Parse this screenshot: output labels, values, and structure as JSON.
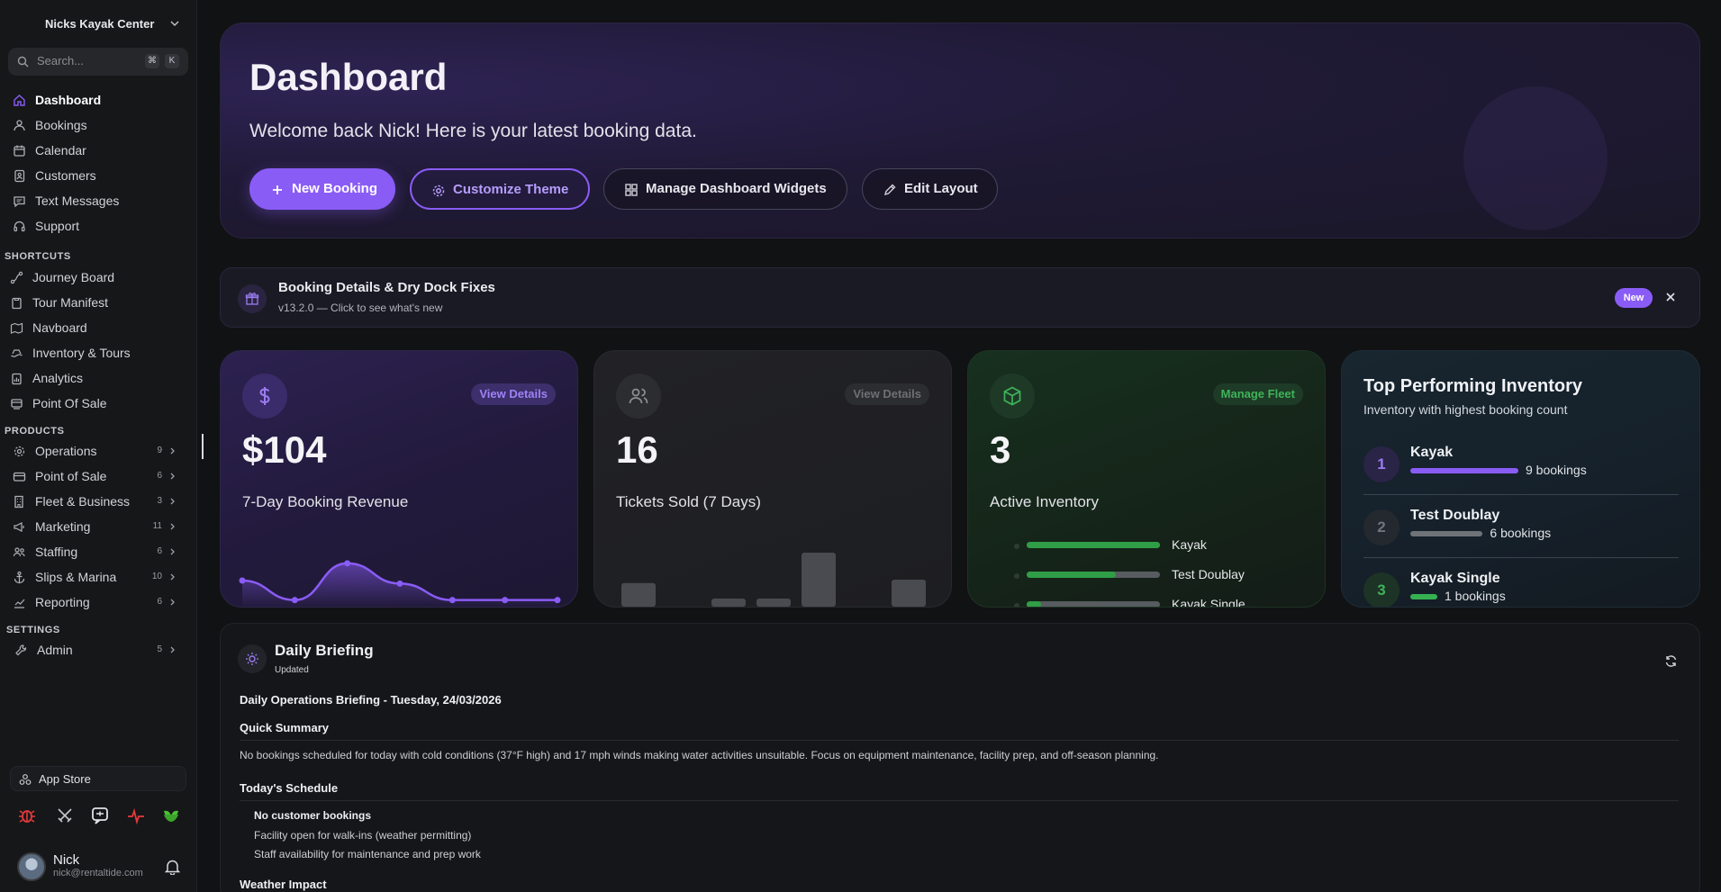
{
  "sidebar": {
    "org_name": "Nicks Kayak Center",
    "search_placeholder": "Search...",
    "search_kbd": [
      "⌘",
      "K"
    ],
    "main_nav": [
      {
        "label": "Dashboard",
        "icon": "home-icon",
        "active": true
      },
      {
        "label": "Bookings",
        "icon": "users-icon"
      },
      {
        "label": "Calendar",
        "icon": "calendar-icon"
      },
      {
        "label": "Customers",
        "icon": "contact-book-icon"
      },
      {
        "label": "Text Messages",
        "icon": "message-icon"
      },
      {
        "label": "Support",
        "icon": "headset-icon"
      }
    ],
    "shortcuts_label": "SHORTCUTS",
    "shortcuts": [
      {
        "label": "Journey Board",
        "icon": "route-icon"
      },
      {
        "label": "Tour Manifest",
        "icon": "clipboard-icon"
      },
      {
        "label": "Navboard",
        "icon": "map-icon"
      },
      {
        "label": "Inventory & Tours",
        "icon": "ship-icon"
      },
      {
        "label": "Analytics",
        "icon": "clipboard-chart-icon"
      },
      {
        "label": "Point Of Sale",
        "icon": "register-icon"
      }
    ],
    "products_label": "PRODUCTS",
    "products": [
      {
        "label": "Operations",
        "icon": "gear-icon",
        "count": "9"
      },
      {
        "label": "Point of Sale",
        "icon": "card-icon",
        "count": "6"
      },
      {
        "label": "Fleet & Business",
        "icon": "building-icon",
        "count": "3"
      },
      {
        "label": "Marketing",
        "icon": "megaphone-icon",
        "count": "11"
      },
      {
        "label": "Staffing",
        "icon": "staff-icon",
        "count": "6"
      },
      {
        "label": "Slips & Marina",
        "icon": "anchor-icon",
        "count": "10"
      },
      {
        "label": "Reporting",
        "icon": "report-icon",
        "count": "6"
      }
    ],
    "settings_label": "SETTINGS",
    "settings": [
      {
        "label": "Admin",
        "icon": "wrench-icon",
        "count": "5"
      }
    ],
    "app_store_label": "App Store",
    "tools": [
      "bug-icon",
      "swords-icon",
      "chat-icon",
      "pulse-icon",
      "leaf-icon"
    ],
    "user": {
      "name": "Nick",
      "email": "nick@rentaltide.com"
    }
  },
  "hero": {
    "title": "Dashboard",
    "subtitle": "Welcome back Nick! Here is your latest booking data.",
    "buttons": [
      {
        "label": "New Booking",
        "icon": "plus-icon"
      },
      {
        "label": "Customize Theme",
        "icon": "gear-icon"
      },
      {
        "label": "Manage Dashboard Widgets",
        "icon": "grid-icon"
      },
      {
        "label": "Edit Layout",
        "icon": "pencil-icon"
      }
    ]
  },
  "banner": {
    "title": "Booking Details & Dry Dock Fixes",
    "subtitle": "v13.2.0 — Click to see what's new",
    "badge": "New"
  },
  "cards": {
    "revenue": {
      "value": "$104",
      "caption": "7-Day Booking Revenue",
      "action": "View Details"
    },
    "tickets": {
      "value": "16",
      "caption": "Tickets Sold (7 Days)",
      "action": "View Details"
    },
    "inventory": {
      "value": "3",
      "caption": "Active Inventory",
      "action": "Manage Fleet",
      "items": [
        {
          "name": "Kayak",
          "level": 1.0
        },
        {
          "name": "Test Doublay",
          "level": 0.67
        },
        {
          "name": "Kayak Single",
          "level": 0.11
        }
      ]
    },
    "top": {
      "title": "Top Performing Inventory",
      "subtitle": "Inventory with highest booking count",
      "items": [
        {
          "rank": "1",
          "name": "Kayak",
          "bookings": "9 bookings",
          "share": 1.0
        },
        {
          "rank": "2",
          "name": "Test Doublay",
          "bookings": "6 bookings",
          "share": 0.67
        },
        {
          "rank": "3",
          "name": "Kayak Single",
          "bookings": "1 bookings",
          "share": 0.11
        }
      ]
    }
  },
  "chart_data": [
    {
      "type": "area",
      "x": [
        1,
        2,
        3,
        4,
        5,
        6,
        7
      ],
      "values": [
        30,
        4,
        53,
        26,
        4,
        4,
        4
      ],
      "ylim": [
        0,
        60
      ],
      "color": "#8a5cf6"
    },
    {
      "type": "bar",
      "categories": [
        "1",
        "2",
        "3",
        "4",
        "5",
        "6",
        "7"
      ],
      "values": [
        3.5,
        0,
        1.2,
        1.2,
        8,
        0,
        4
      ],
      "ylim": [
        0,
        8
      ],
      "color": "#4a4b50"
    }
  ],
  "briefing": {
    "title": "Daily Briefing",
    "updated": "Updated",
    "heading": "Daily Operations Briefing - Tuesday, 24/03/2026",
    "quick_summary_label": "Quick Summary",
    "quick_summary": "No bookings scheduled for today with cold conditions (37°F high) and 17 mph winds making water activities unsuitable. Focus on equipment maintenance, facility prep, and off-season planning.",
    "schedule_label": "Today's Schedule",
    "schedule": [
      "No customer bookings",
      "Facility open for walk-ins (weather permitting)",
      "Staff availability for maintenance and prep work"
    ],
    "weather_label": "Weather Impact"
  }
}
